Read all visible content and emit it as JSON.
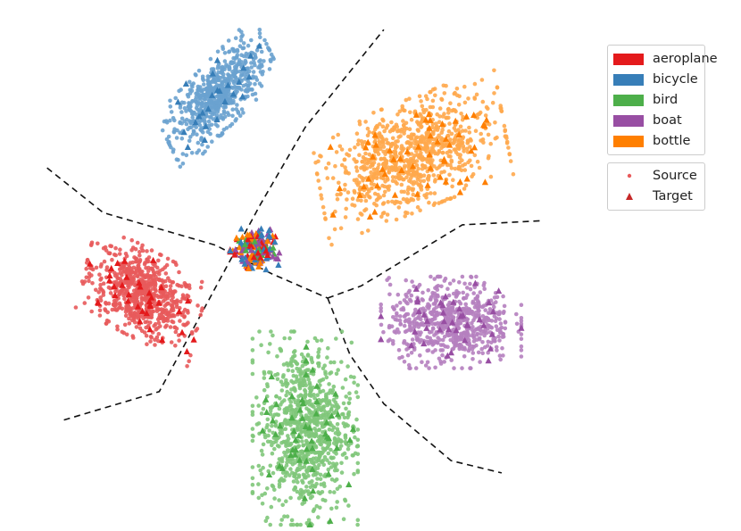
{
  "chart_data": {
    "type": "scatter",
    "title": "",
    "xlabel": "",
    "ylabel": "",
    "grid": false,
    "axes_visible": false,
    "legend_placement": "top-right (outside plot)",
    "classes": [
      {
        "name": "aeroplane",
        "color": "#e41a1c",
        "source_color": "#e85a5b"
      },
      {
        "name": "bicycle",
        "color": "#377eb8",
        "source_color": "#6aa2cf"
      },
      {
        "name": "bird",
        "color": "#4daf4a",
        "source_color": "#7fc77a"
      },
      {
        "name": "boat",
        "color": "#984ea3",
        "source_color": "#b57fbf"
      },
      {
        "name": "bottle",
        "color": "#ff7f00",
        "source_color": "#ffa94d"
      }
    ],
    "domains": [
      {
        "name": "Source",
        "marker": "circle"
      },
      {
        "name": "Target",
        "marker": "triangle"
      }
    ],
    "clusters": [
      {
        "class": "aeroplane",
        "center": [
          -2.9,
          -0.55
        ],
        "spread": [
          0.85,
          0.45
        ],
        "angle_deg": -20,
        "source_points": 700,
        "target_points": 35
      },
      {
        "class": "bicycle",
        "center": [
          -1.55,
          1.9
        ],
        "spread": [
          0.85,
          0.35
        ],
        "angle_deg": 35,
        "source_points": 650,
        "target_points": 25
      },
      {
        "class": "bird",
        "center": [
          0.0,
          -2.2
        ],
        "spread": [
          0.75,
          0.95
        ],
        "angle_deg": 0,
        "source_points": 900,
        "target_points": 55
      },
      {
        "class": "boat",
        "center": [
          2.6,
          -0.9
        ],
        "spread": [
          1.0,
          0.45
        ],
        "angle_deg": 0,
        "source_points": 650,
        "target_points": 40
      },
      {
        "class": "bottle",
        "center": [
          1.9,
          1.15
        ],
        "spread": [
          1.35,
          0.55
        ],
        "angle_deg": 15,
        "source_points": 900,
        "target_points": 55
      },
      {
        "class": "mixed",
        "center": [
          -0.9,
          0.0
        ],
        "spread": [
          0.35,
          0.2
        ],
        "angle_deg": 0,
        "source_points": 0,
        "target_points": 180
      }
    ],
    "decision_boundaries": [
      [
        [
          -4.6,
          1.0
        ],
        [
          -3.6,
          0.45
        ],
        [
          -1.6,
          0.05
        ],
        [
          -0.6,
          -0.3
        ],
        [
          0.4,
          -0.6
        ]
      ],
      [
        [
          -4.3,
          -2.1
        ],
        [
          -2.6,
          -1.75
        ],
        [
          -1.7,
          -0.6
        ],
        [
          -0.8,
          0.55
        ],
        [
          0.0,
          1.5
        ],
        [
          1.4,
          2.7
        ]
      ],
      [
        [
          0.4,
          -0.6
        ],
        [
          0.8,
          -1.3
        ],
        [
          1.4,
          -1.9
        ],
        [
          2.6,
          -2.6
        ],
        [
          3.5,
          -2.75
        ]
      ],
      [
        [
          0.4,
          -0.6
        ],
        [
          1.0,
          -0.45
        ],
        [
          2.8,
          0.3
        ],
        [
          4.2,
          0.35
        ]
      ]
    ],
    "xlim": [
      -5.2,
      5.3
    ],
    "ylim": [
      -3.3,
      2.9
    ]
  },
  "legend": {
    "classes": [
      "aeroplane",
      "bicycle",
      "bird",
      "boat",
      "bottle"
    ],
    "domains": [
      "Source",
      "Target"
    ]
  }
}
